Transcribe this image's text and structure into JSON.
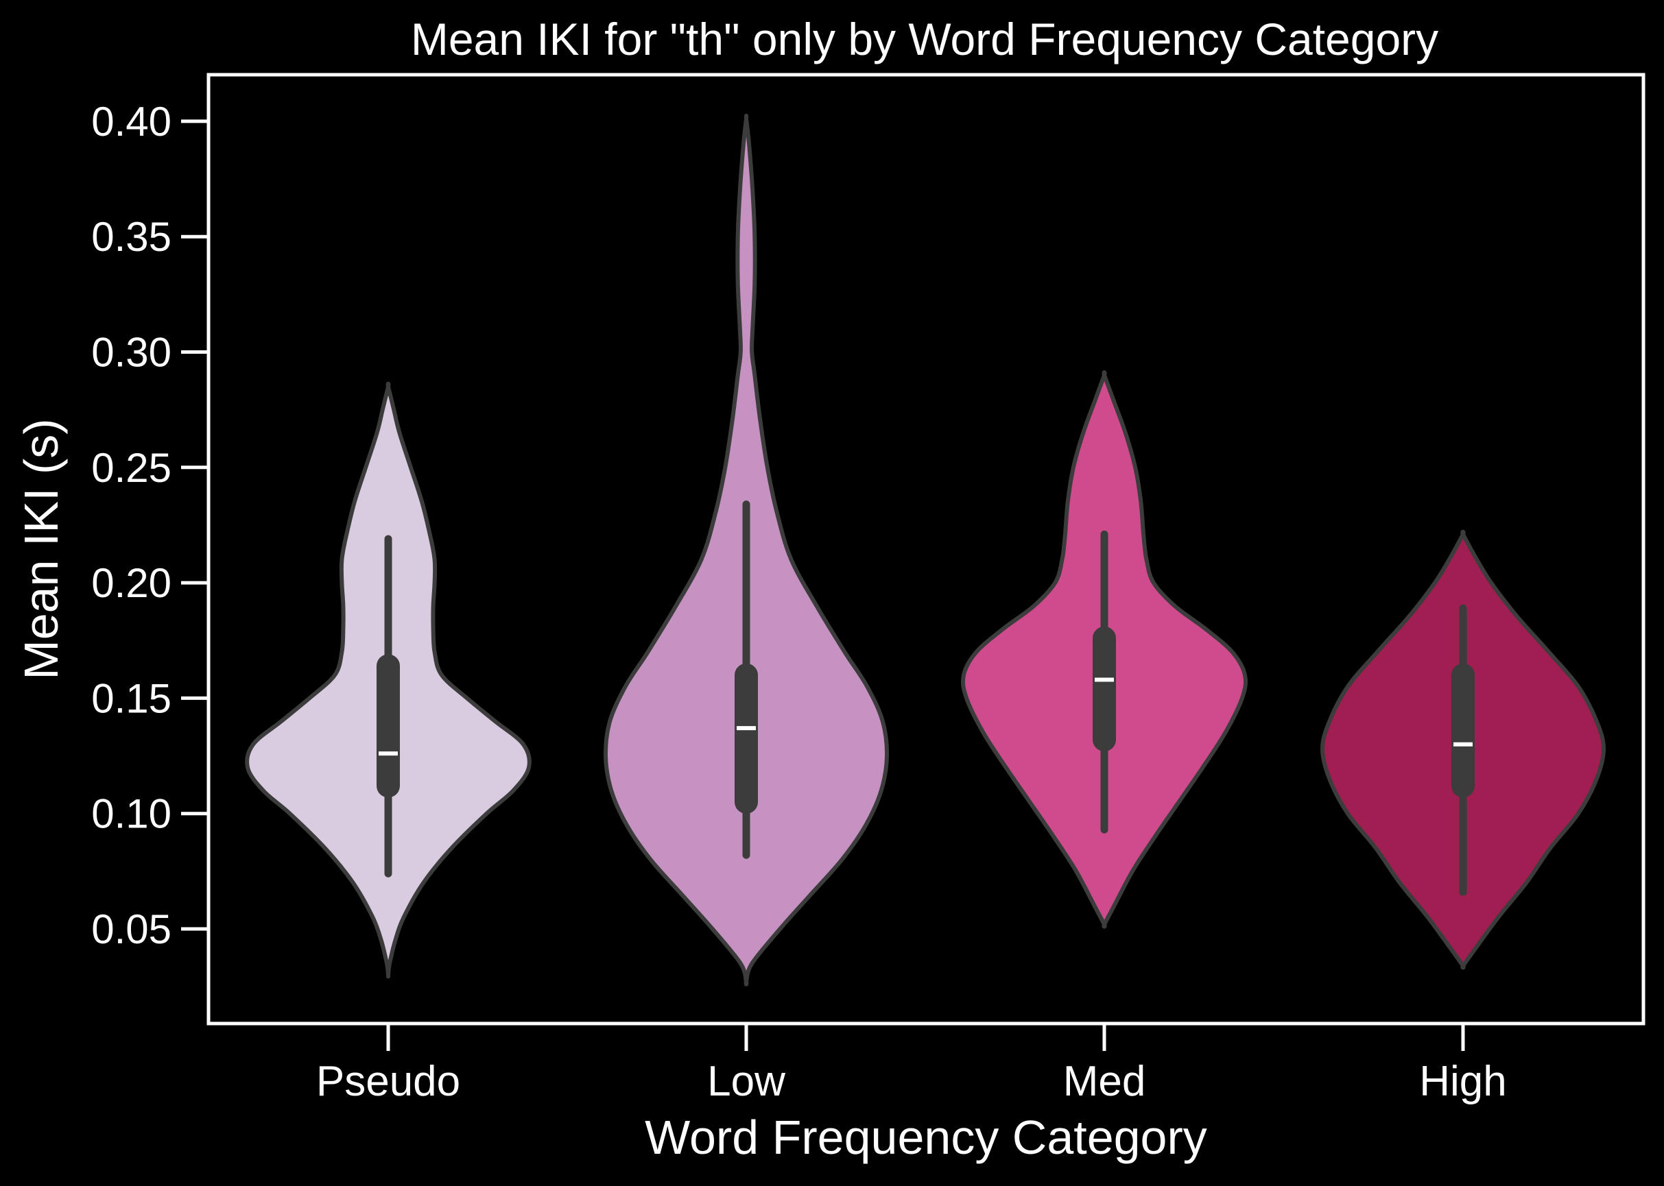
{
  "chart_data": {
    "type": "violin",
    "title": "Mean IKI for \"th\" only by Word Frequency Category",
    "xlabel": "Word Frequency Category",
    "ylabel": "Mean IKI (s)",
    "ylim": [
      0.01,
      0.42
    ],
    "yticks": [
      "0.05",
      "0.10",
      "0.15",
      "0.20",
      "0.25",
      "0.30",
      "0.35",
      "0.40"
    ],
    "grid": false,
    "categories": [
      "Pseudo",
      "Low",
      "Med",
      "High"
    ],
    "colors": {
      "background": "#000000",
      "axes": "#ffffff",
      "outline": "#3c3c3c",
      "Pseudo": "#d9cbe0",
      "Low": "#c692c1",
      "Med": "#cf4b8d",
      "High": "#a01e52"
    },
    "violins": [
      {
        "category": "Pseudo",
        "whisker_low": 0.074,
        "q1": 0.112,
        "median": 0.126,
        "q3": 0.164,
        "whisker_high": 0.219,
        "density": [
          [
            0.03,
            0.0
          ],
          [
            0.035,
            0.01
          ],
          [
            0.045,
            0.05
          ],
          [
            0.055,
            0.11
          ],
          [
            0.07,
            0.25
          ],
          [
            0.085,
            0.45
          ],
          [
            0.1,
            0.7
          ],
          [
            0.11,
            0.89
          ],
          [
            0.12,
            1.0
          ],
          [
            0.13,
            0.96
          ],
          [
            0.14,
            0.76
          ],
          [
            0.15,
            0.56
          ],
          [
            0.16,
            0.38
          ],
          [
            0.17,
            0.33
          ],
          [
            0.18,
            0.32
          ],
          [
            0.19,
            0.32
          ],
          [
            0.2,
            0.33
          ],
          [
            0.21,
            0.33
          ],
          [
            0.22,
            0.3
          ],
          [
            0.235,
            0.24
          ],
          [
            0.25,
            0.16
          ],
          [
            0.265,
            0.08
          ],
          [
            0.275,
            0.04
          ],
          [
            0.285,
            0.0
          ]
        ]
      },
      {
        "category": "Low",
        "whisker_low": 0.082,
        "q1": 0.105,
        "median": 0.137,
        "q3": 0.16,
        "whisker_high": 0.234,
        "density": [
          [
            0.027,
            0.0
          ],
          [
            0.035,
            0.04
          ],
          [
            0.05,
            0.24
          ],
          [
            0.065,
            0.46
          ],
          [
            0.08,
            0.68
          ],
          [
            0.095,
            0.85
          ],
          [
            0.11,
            0.96
          ],
          [
            0.125,
            1.0
          ],
          [
            0.14,
            0.97
          ],
          [
            0.155,
            0.86
          ],
          [
            0.17,
            0.7
          ],
          [
            0.19,
            0.5
          ],
          [
            0.21,
            0.32
          ],
          [
            0.23,
            0.22
          ],
          [
            0.25,
            0.15
          ],
          [
            0.27,
            0.1
          ],
          [
            0.29,
            0.06
          ],
          [
            0.3,
            0.04
          ],
          [
            0.31,
            0.045
          ],
          [
            0.33,
            0.06
          ],
          [
            0.35,
            0.06
          ],
          [
            0.37,
            0.045
          ],
          [
            0.39,
            0.02
          ],
          [
            0.401,
            0.0
          ]
        ]
      },
      {
        "category": "Med",
        "whisker_low": 0.093,
        "q1": 0.132,
        "median": 0.158,
        "q3": 0.176,
        "whisker_high": 0.221,
        "density": [
          [
            0.052,
            0.0
          ],
          [
            0.06,
            0.07
          ],
          [
            0.075,
            0.2
          ],
          [
            0.09,
            0.36
          ],
          [
            0.105,
            0.53
          ],
          [
            0.12,
            0.7
          ],
          [
            0.135,
            0.86
          ],
          [
            0.15,
            0.98
          ],
          [
            0.16,
            1.0
          ],
          [
            0.17,
            0.91
          ],
          [
            0.18,
            0.72
          ],
          [
            0.19,
            0.5
          ],
          [
            0.2,
            0.35
          ],
          [
            0.21,
            0.3
          ],
          [
            0.22,
            0.28
          ],
          [
            0.235,
            0.26
          ],
          [
            0.25,
            0.22
          ],
          [
            0.265,
            0.15
          ],
          [
            0.28,
            0.06
          ],
          [
            0.29,
            0.0
          ]
        ]
      },
      {
        "category": "High",
        "whisker_low": 0.066,
        "q1": 0.112,
        "median": 0.13,
        "q3": 0.16,
        "whisker_high": 0.189,
        "density": [
          [
            0.034,
            0.0
          ],
          [
            0.04,
            0.07
          ],
          [
            0.055,
            0.25
          ],
          [
            0.07,
            0.45
          ],
          [
            0.085,
            0.62
          ],
          [
            0.1,
            0.82
          ],
          [
            0.115,
            0.95
          ],
          [
            0.128,
            1.0
          ],
          [
            0.14,
            0.95
          ],
          [
            0.155,
            0.82
          ],
          [
            0.17,
            0.61
          ],
          [
            0.185,
            0.39
          ],
          [
            0.2,
            0.2
          ],
          [
            0.212,
            0.08
          ],
          [
            0.221,
            0.0
          ]
        ]
      }
    ]
  }
}
